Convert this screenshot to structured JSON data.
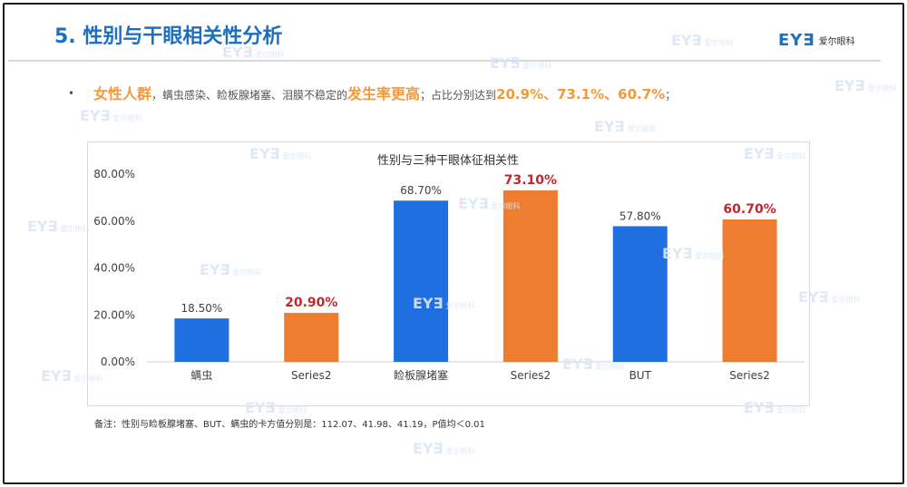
{
  "slide": {
    "title": "5. 性别与干眼相关性分析",
    "logo_mark": "EY∃",
    "logo_text": "爱尔眼科",
    "bullet_symbol": "•",
    "summary": {
      "highlight_group": "女性人群",
      "middle_text": "，螨虫感染、睑板腺堵塞、泪膜不稳定的",
      "highlight_rate": "发生率更高",
      "lead_values": "；占比分别达到",
      "values": "20.9%、73.1%、60.7%",
      "end": "；"
    },
    "footnote": "备注：性别与睑板腺堵塞、BUT、螨虫的卡方值分别是：112.07、41.98、41.19，P值均＜0.01",
    "watermark_mark": "EY∃",
    "watermark_text": "爱尔眼科"
  },
  "colors": {
    "blue": "#1f6fe0",
    "orange": "#ee7d31",
    "red_label": "#c0282f",
    "label_gray": "#404040"
  },
  "chart_data": {
    "type": "bar",
    "title": "性别与三种干眼体征相关性",
    "categories": [
      "螨虫",
      "Series2",
      "睑板腺堵塞",
      "Series2",
      "BUT",
      "Series2"
    ],
    "values": [
      18.5,
      20.9,
      68.7,
      73.1,
      57.8,
      60.7
    ],
    "labels": [
      "18.50%",
      "20.90%",
      "68.70%",
      "73.10%",
      "57.80%",
      "60.70%"
    ],
    "bar_colors": [
      "#1f6fe0",
      "#ee7d31",
      "#1f6fe0",
      "#ee7d31",
      "#1f6fe0",
      "#ee7d31"
    ],
    "emphasized": [
      false,
      true,
      false,
      true,
      false,
      true
    ],
    "y_ticks": [
      "0.00%",
      "20.00%",
      "40.00%",
      "60.00%",
      "80.00%"
    ],
    "ylim": [
      0,
      80
    ],
    "grid": false,
    "legend": "none"
  }
}
